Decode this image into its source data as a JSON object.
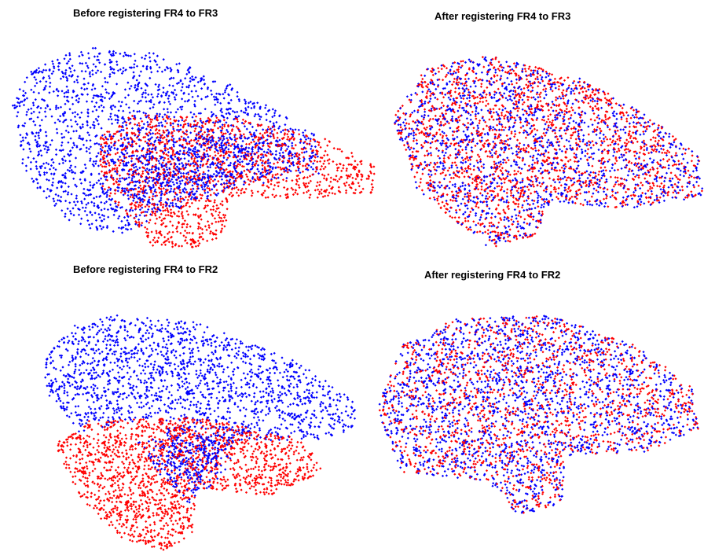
{
  "panels": [
    {
      "title": "Before registering FR4 to FR3"
    },
    {
      "title": "After registering FR4 to FR3"
    },
    {
      "title": "Before registering FR4 to FR2"
    },
    {
      "title": "After registering FR4 to FR2"
    }
  ]
}
